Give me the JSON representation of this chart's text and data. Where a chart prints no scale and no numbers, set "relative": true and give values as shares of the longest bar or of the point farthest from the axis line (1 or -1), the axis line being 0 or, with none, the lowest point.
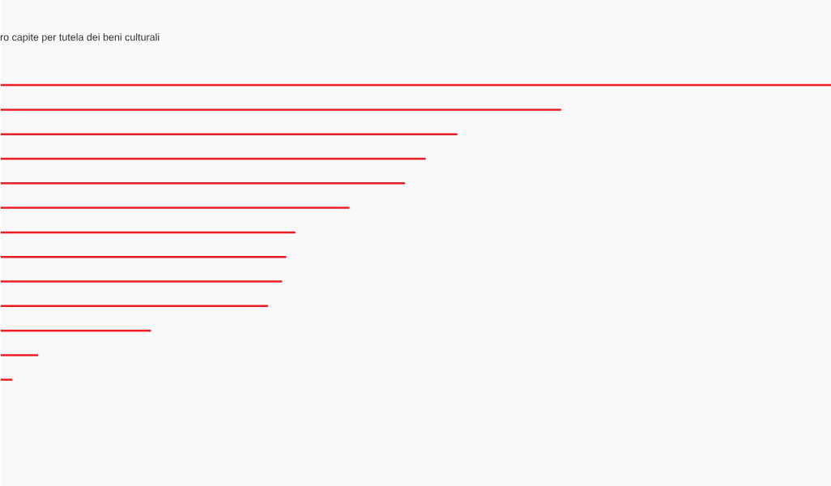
{
  "chart_data": {
    "type": "bar",
    "title": "ro capite per tutela dei beni culturali",
    "orientation": "horizontal",
    "relative": true,
    "categories": [
      null,
      null,
      null,
      null,
      null,
      null,
      null,
      null,
      null,
      null,
      null,
      null,
      null
    ],
    "values": [
      1,
      0.675,
      0.55,
      0.512,
      0.487,
      0.42,
      0.355,
      0.344,
      0.339,
      0.322,
      0.181,
      0.045,
      0.014
    ],
    "color": "#ee1c25"
  }
}
